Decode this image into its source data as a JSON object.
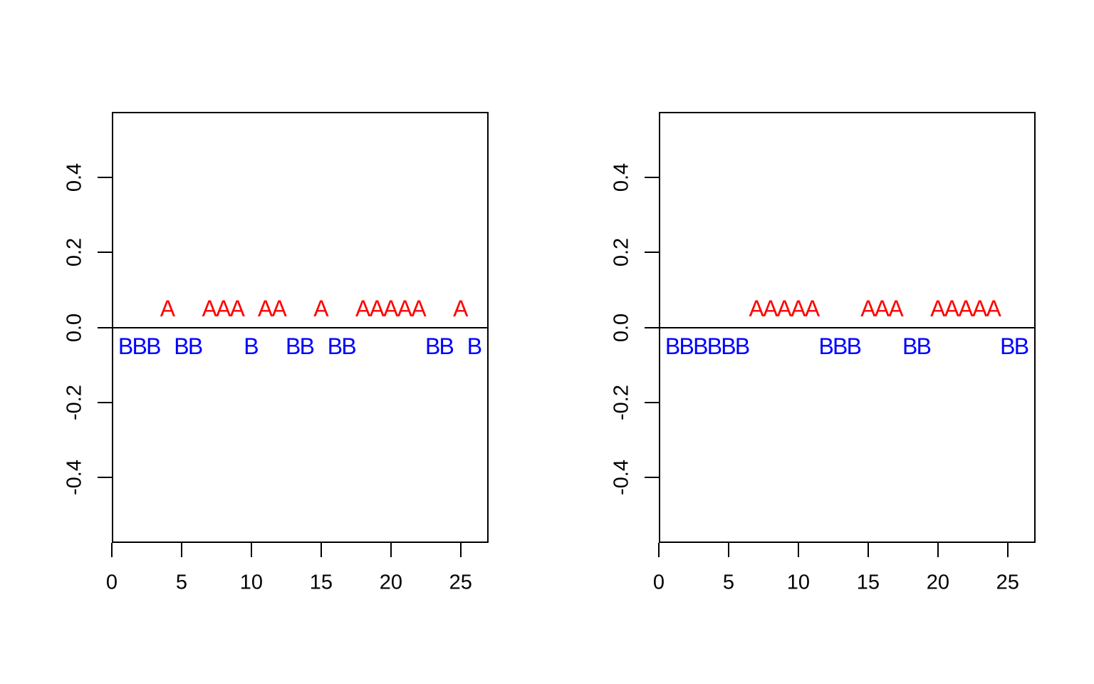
{
  "page": {
    "background": "#FFFFFF",
    "title": ""
  },
  "chart_data": [
    {
      "type": "scatter",
      "title": "",
      "xlabel": "",
      "ylabel": "",
      "point_style": "text-letters",
      "grid": false,
      "legend": "none",
      "xlim": [
        0,
        27
      ],
      "ylim": [
        -0.575,
        0.575
      ],
      "x_ticks": {
        "values": [
          0,
          5,
          10,
          15,
          20,
          25
        ],
        "labels": [
          "0",
          "5",
          "10",
          "15",
          "20",
          "25"
        ]
      },
      "y_ticks": {
        "values": [
          0.4,
          0.2,
          0.0,
          -0.2,
          -0.4
        ],
        "labels": [
          "0.4",
          "0.2",
          "0.0",
          "-0.2",
          "-0.4"
        ]
      },
      "zero_line": true,
      "axis_color": "#000000",
      "series": [
        {
          "name": "A",
          "glyph": "A",
          "color": "#FF0000",
          "y": 0.05,
          "x": [
            4,
            7,
            8,
            9,
            11,
            12,
            15,
            18,
            19,
            20,
            21,
            22,
            25
          ]
        },
        {
          "name": "B",
          "glyph": "B",
          "color": "#0000FF",
          "y": -0.05,
          "x": [
            1,
            2,
            3,
            5,
            6,
            10,
            13,
            14,
            16,
            17,
            23,
            24,
            26
          ]
        }
      ]
    },
    {
      "type": "scatter",
      "title": "",
      "xlabel": "",
      "ylabel": "",
      "point_style": "text-letters",
      "grid": false,
      "legend": "none",
      "xlim": [
        0,
        27
      ],
      "ylim": [
        -0.575,
        0.575
      ],
      "x_ticks": {
        "values": [
          0,
          5,
          10,
          15,
          20,
          25
        ],
        "labels": [
          "0",
          "5",
          "10",
          "15",
          "20",
          "25"
        ]
      },
      "y_ticks": {
        "values": [
          0.4,
          0.2,
          0.0,
          -0.2,
          -0.4
        ],
        "labels": [
          "0.4",
          "0.2",
          "0.0",
          "-0.2",
          "-0.4"
        ]
      },
      "zero_line": true,
      "axis_color": "#000000",
      "series": [
        {
          "name": "A",
          "glyph": "A",
          "color": "#FF0000",
          "y": 0.05,
          "x": [
            7,
            8,
            9,
            10,
            11,
            15,
            16,
            17,
            20,
            21,
            22,
            23,
            24
          ]
        },
        {
          "name": "B",
          "glyph": "B",
          "color": "#0000FF",
          "y": -0.05,
          "x": [
            1,
            2,
            3,
            4,
            5,
            6,
            12,
            13,
            14,
            18,
            19,
            25,
            26
          ]
        }
      ]
    }
  ]
}
